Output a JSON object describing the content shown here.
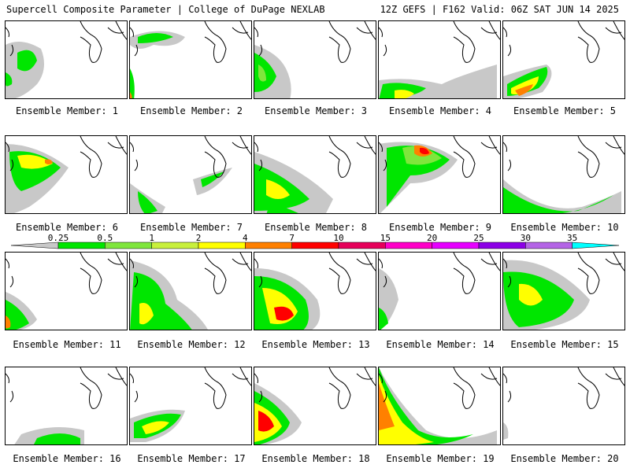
{
  "header": {
    "left_title": "Supercell Composite Parameter | College of DuPage NEXLAB",
    "right_title": "12Z GEFS | F162 Valid: 06Z SAT JUN 14 2025"
  },
  "members": [
    {
      "label": "Ensemble Member: 1"
    },
    {
      "label": "Ensemble Member: 2"
    },
    {
      "label": "Ensemble Member: 3"
    },
    {
      "label": "Ensemble Member: 4"
    },
    {
      "label": "Ensemble Member: 5"
    },
    {
      "label": "Ensemble Member: 6"
    },
    {
      "label": "Ensemble Member: 7"
    },
    {
      "label": "Ensemble Member: 8"
    },
    {
      "label": "Ensemble Member: 9"
    },
    {
      "label": "Ensemble Member: 10"
    },
    {
      "label": "Ensemble Member: 11"
    },
    {
      "label": "Ensemble Member: 12"
    },
    {
      "label": "Ensemble Member: 13"
    },
    {
      "label": "Ensemble Member: 14"
    },
    {
      "label": "Ensemble Member: 15"
    },
    {
      "label": "Ensemble Member: 16"
    },
    {
      "label": "Ensemble Member: 17"
    },
    {
      "label": "Ensemble Member: 18"
    },
    {
      "label": "Ensemble Member: 19"
    },
    {
      "label": "Ensemble Member: 20"
    }
  ],
  "legend": {
    "labels": [
      "0.25",
      "0.5",
      "1",
      "2",
      "4",
      "7",
      "10",
      "15",
      "20",
      "25",
      "30",
      "35"
    ],
    "colors": [
      "#c8c8c8",
      "#00e600",
      "#7fe63c",
      "#c8f03c",
      "#ffff00",
      "#ff8000",
      "#ff0000",
      "#e6005a",
      "#ff00c8",
      "#e600ff",
      "#8c00e6",
      "#b464e6",
      "#00ffff"
    ]
  },
  "colors": {
    "gray": "#c8c8c8",
    "green": "#00e600",
    "lightgreen": "#7fe63c",
    "yellowgreen": "#c8f03c",
    "yellow": "#ffff00",
    "orange": "#ff8000",
    "red": "#ff0000"
  }
}
